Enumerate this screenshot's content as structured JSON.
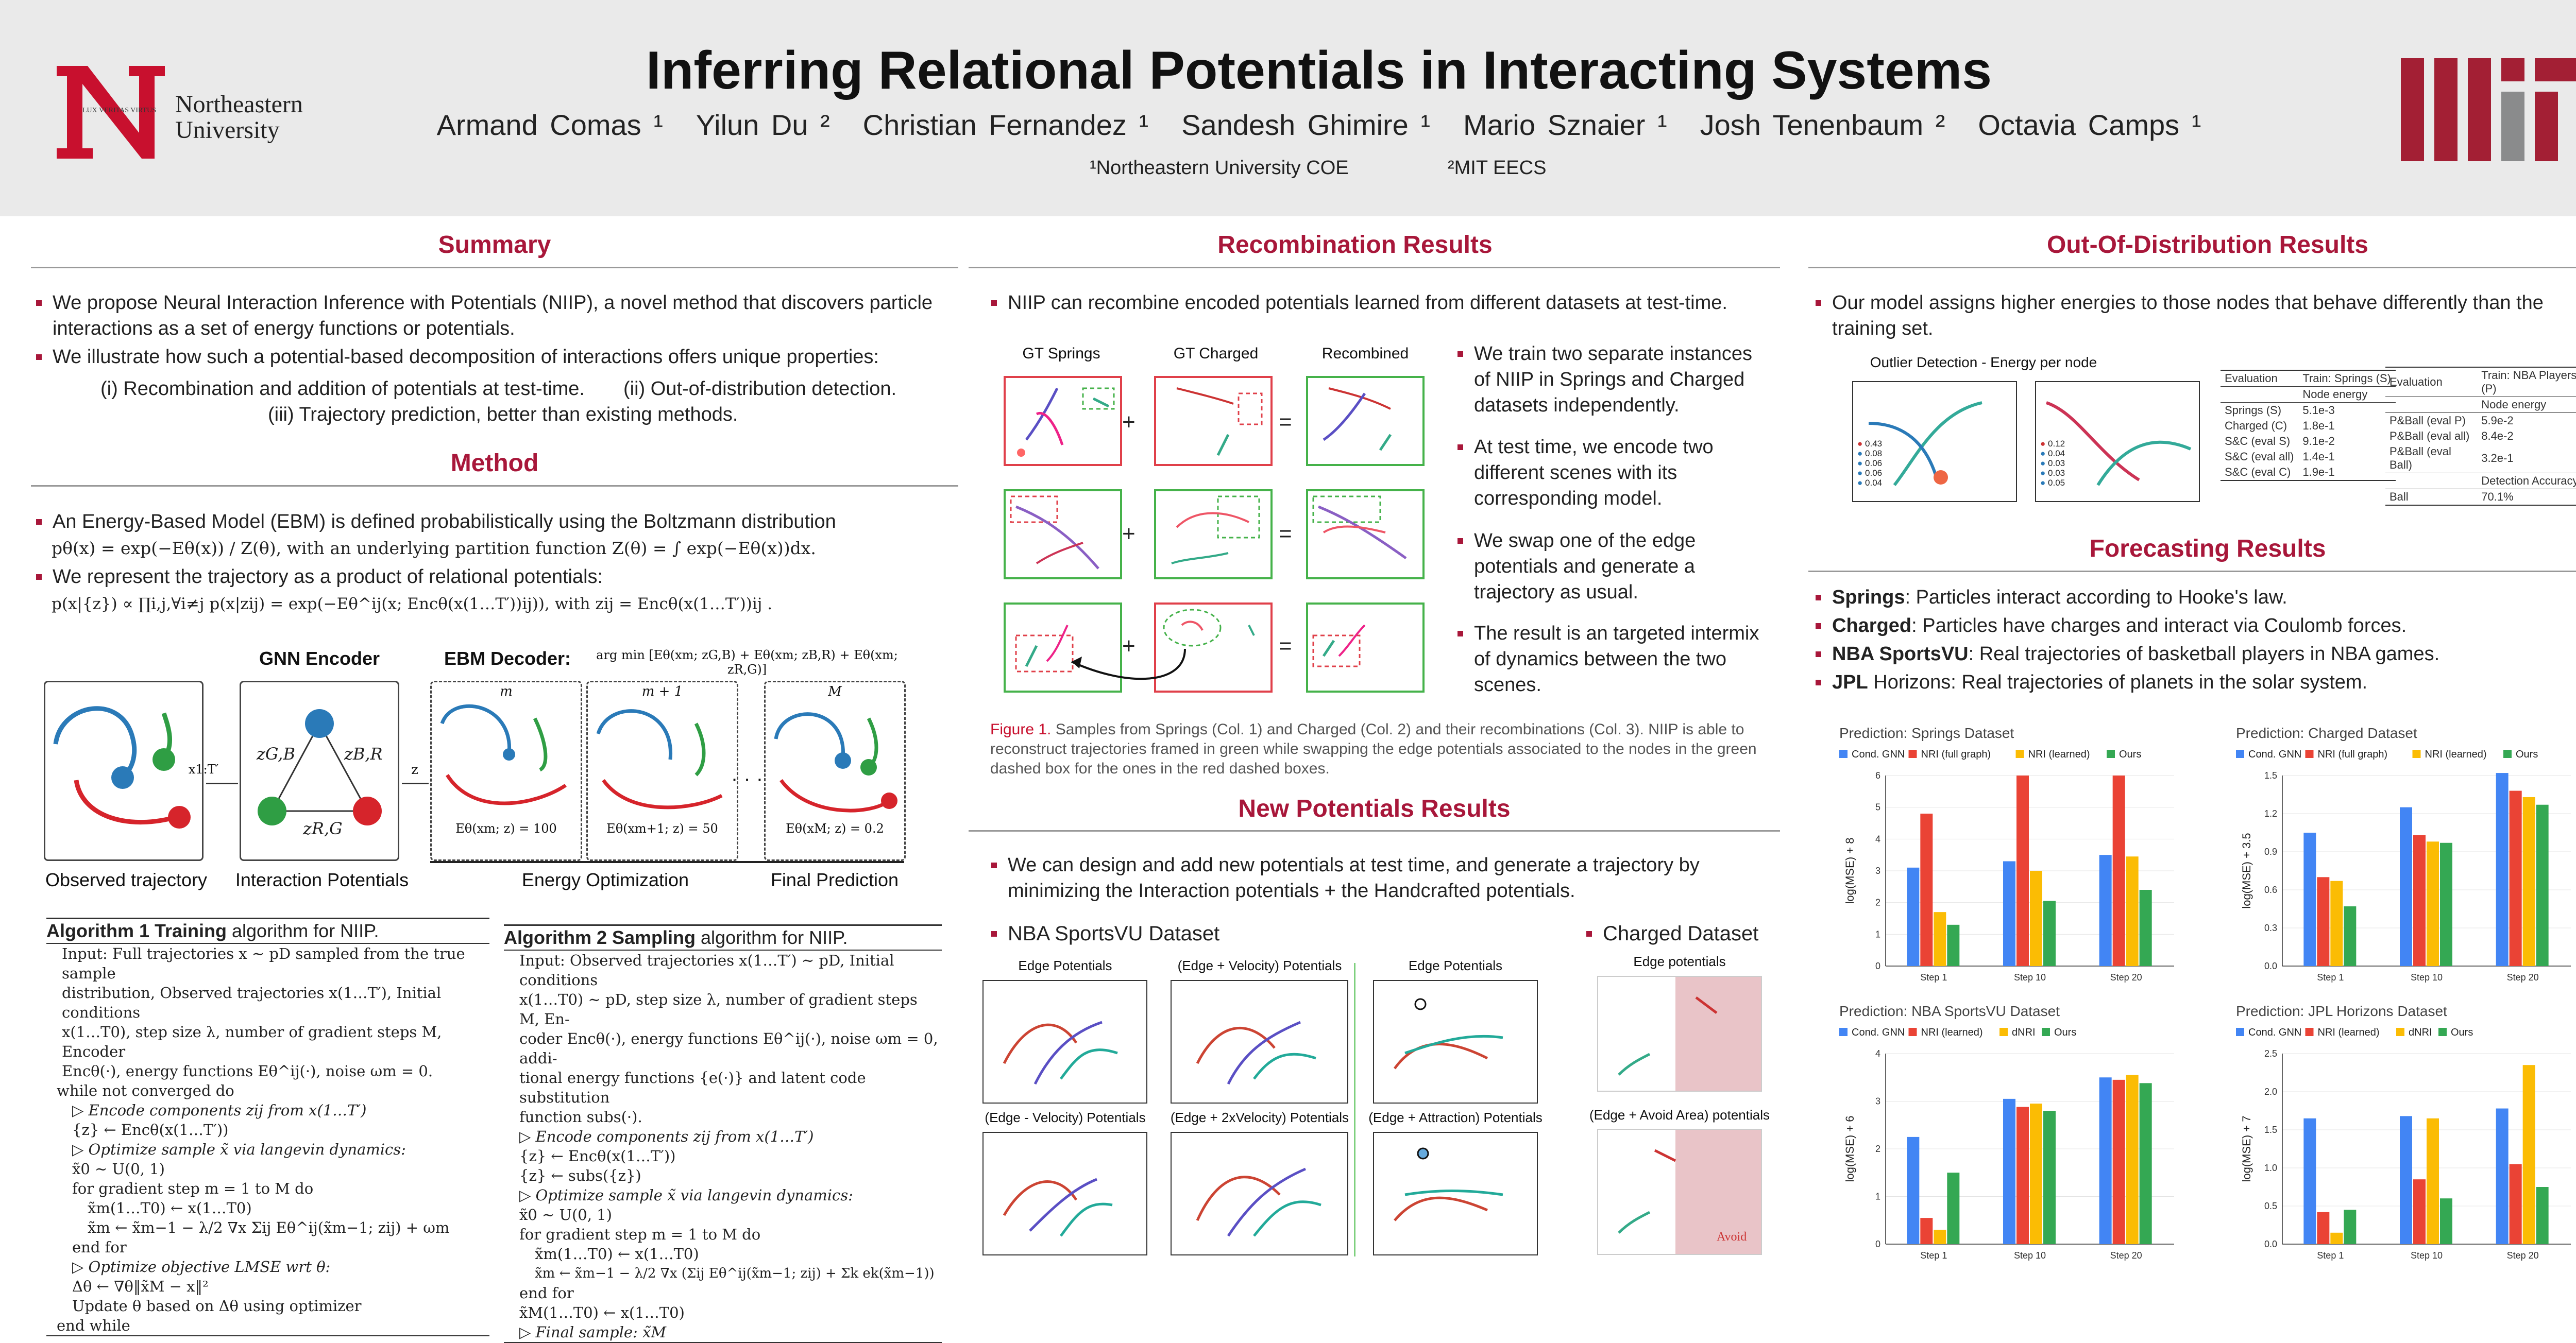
{
  "header": {
    "title": "Inferring Relational Potentials in Interacting Systems",
    "authors": [
      "Armand Comas ¹",
      "Yilun Du ²",
      "Christian Fernandez ¹",
      "Sandesh Ghimire ¹",
      "Mario Sznaier ¹",
      "Josh Tenenbaum ²",
      "Octavia Camps ¹"
    ],
    "affil1": "¹Northeastern University COE",
    "affil2": "²MIT EECS",
    "neu_name1": "Northeastern",
    "neu_name2": "University",
    "neu_motto": "LUX VERITAS VIRTUS"
  },
  "summary": {
    "title": "Summary",
    "b1": "We propose Neural Interaction Inference with Potentials (NIIP), a novel method that discovers particle interactions as a set of energy functions or potentials.",
    "b2": "We illustrate how such a potential-based decomposition of interactions offers unique properties:",
    "p1": "(i) Recombination and addition of potentials at test-time.",
    "p2": "(ii) Out-of-distribution detection.",
    "p3": "(iii) Trajectory prediction, better than existing methods."
  },
  "method": {
    "title": "Method",
    "b1": "An Energy-Based Model (EBM) is defined probabilistically using the Boltzmann distribution",
    "eq1": "pθ(x) = exp(−Eθ(x)) / Z(θ), with an underlying partition function Z(θ) = ∫ exp(−Eθ(x))dx.",
    "b2": "We represent the trajectory as a product of relational potentials:",
    "eq2": "p(x|{z}) ∝ ∏i,j,∀i≠j p(x|zij) = exp(−Eθ^ij(x; Encθ(x(1…T′))ij)), with zij = Encθ(x(1…T′))ij .",
    "gnn": "GNN Encoder",
    "ebm": "EBM Decoder:",
    "argmin": "arg min [Eθ(xm; zG,B) + Eθ(xm; zB,R) + Eθ(xm; zR,G)]",
    "obs": "Observed trajectory",
    "inter": "Interaction Potentials",
    "opt": "Energy Optimization",
    "final": "Final Prediction",
    "x1t": "x1:T′",
    "z": "z",
    "zgb": "zG,B",
    "zbr": "zB,R",
    "zrg": "zR,G",
    "m0": "m",
    "m1": "m + 1",
    "m2": "M",
    "e0": "Eθ(xm; z) = 100",
    "e1": "Eθ(xm+1; z) = 50",
    "e2": "Eθ(xM; z) = 0.2",
    "dots": "· · ·"
  },
  "algo1": {
    "title_b": "Algorithm 1 Training",
    "title_r": " algorithm for NIIP.",
    "lines": [
      "Input: Full trajectories x ∼ pD sampled from the true sample",
      "distribution, Observed trajectories x(1…T′), Initial conditions",
      "x(1…T0), step size λ, number of gradient steps M, Encoder",
      "Encθ(·), energy functions Eθ^ij(·), noise ωm = 0.",
      "while not converged do",
      "   ▷ Encode components zij from x(1…T′)",
      "   {z} ← Encθ(x(1…T′))",
      "   ▷ Optimize sample x̃ via langevin dynamics:",
      "   x̃0 ∼ U(0, 1)",
      "   for gradient step m = 1 to M do",
      "      x̃m(1…T0) ← x(1…T0)",
      "      x̃m ← x̃m−1 − λ/2 ∇x Σij Eθ^ij(x̃m−1; zij) + ωm",
      "   end for",
      "   ▷ Optimize objective LMSE wrt θ:",
      "   Δθ ← ∇θ‖x̃M − x‖²",
      "   Update θ based on Δθ using optimizer",
      "end while"
    ]
  },
  "algo2": {
    "title_b": "Algorithm 2 Sampling",
    "title_r": " algorithm for NIIP.",
    "lines": [
      "Input: Observed trajectories x(1…T′) ∼ pD, Initial conditions",
      "x(1…T0) ∼ pD, step size λ, number of gradient steps M, En-",
      "coder Encθ(·), energy functions Eθ^ij(·), noise ωm = 0, addi-",
      "tional energy functions {e(·)} and latent code substitution",
      "function subs(·).",
      "▷ Encode components zij from x(1…T′)",
      "{z} ← Encθ(x(1…T′))",
      "{z} ← subs({z})",
      "▷ Optimize sample x̃ via langevin dynamics:",
      "x̃0 ∼ U(0, 1)",
      "for gradient step m = 1 to M do",
      "   x̃m(1…T0) ← x(1…T0)",
      "   x̃m ← x̃m−1 − λ/2 ∇x (Σij Eθ^ij(x̃m−1; zij) + Σk ek(x̃m−1))",
      "end for",
      "x̃M(1…T0) ← x(1…T0)",
      "▷ Final sample: x̃M"
    ]
  },
  "recomb": {
    "title": "Recombination Results",
    "intro": "NIIP can recombine encoded potentials learned from different datasets at test-time.",
    "col1": "GT Springs",
    "col2": "GT Charged",
    "col3": "Recombined",
    "b1": "We train two separate instances of NIIP in Springs and Charged datasets independently.",
    "b2": "At test time, we encode two different scenes with its corresponding model.",
    "b3": "We swap one of the edge potentials and generate a trajectory as usual.",
    "b4": "The result is an targeted intermix of dynamics between the two scenes.",
    "fig_label": "Figure 1.",
    "fig_text": " Samples from Springs (Col. 1) and Charged (Col. 2) and their recombinations (Col. 3). NIIP is able to reconstruct trajectories framed in green while swapping the edge potentials associated to the nodes in the green dashed box for the ones in the red dashed boxes."
  },
  "newpot": {
    "title": "New Potentials Results",
    "b1": "We can design and add new potentials at test time, and generate a trajectory by minimizing the Interaction potentials + the Handcrafted potentials.",
    "nba": "NBA SportsVU Dataset",
    "charged": "Charged Dataset",
    "p1": "Edge Potentials",
    "p2": "(Edge + Velocity) Potentials",
    "p3": "Edge Potentials",
    "p4": "(Edge - Velocity) Potentials",
    "p5": "(Edge + 2xVelocity) Potentials",
    "p6": "(Edge + Attraction) Potentials",
    "c1": "Edge potentials",
    "c2": "(Edge + Avoid Area) potentials",
    "avoid": "Avoid"
  },
  "ood": {
    "title": "Out-Of-Distribution Results",
    "b1": "Our model assigns higher energies to those nodes that behave differently than the training set.",
    "plot_title": "Outlier Detection - Energy per node",
    "leg1": [
      "0.43",
      "0.08",
      "0.06",
      "0.06",
      "0.04"
    ],
    "leg2": [
      "0.12",
      "0.04",
      "0.03",
      "0.03",
      "0.05"
    ],
    "t1_h1": "Evaluation",
    "t1_h2": "Train: Springs (S)",
    "t1_sub": "Node energy",
    "t1_rows": [
      [
        "Springs (S)",
        "5.1e-3"
      ],
      [
        "Charged (C)",
        "1.8e-1"
      ],
      [
        "S&C (eval S)",
        "9.1e-2"
      ],
      [
        "S&C (eval all)",
        "1.4e-1"
      ],
      [
        "S&C (eval C)",
        "1.9e-1"
      ]
    ],
    "t2_h1": "Evaluation",
    "t2_h2": "Train: NBA Players (P)",
    "t2_sub": "Node energy",
    "t2_rows": [
      [
        "P&Ball (eval P)",
        "5.9e-2"
      ],
      [
        "P&Ball (eval all)",
        "8.4e-2"
      ],
      [
        "P&Ball (eval Ball)",
        "3.2e-1"
      ]
    ],
    "t2_sub2": "Detection Accuracy",
    "t2_row_b": [
      "Ball",
      "70.1%"
    ]
  },
  "forecast": {
    "title": "Forecasting Results",
    "items": [
      {
        "k": "Springs",
        "v": ": Particles interact according to Hooke's law."
      },
      {
        "k": "Charged",
        "v": ": Particles have charges and interact via Coulomb forces."
      },
      {
        "k": "NBA SportsVU",
        "v": ": Real trajectories of basketball players in NBA games."
      },
      {
        "k": "JPL",
        "v": " Horizons: Real trajectories of planets in the solar system."
      }
    ]
  },
  "colors": {
    "accent": "#a8173a",
    "blue": "#4285f4",
    "red": "#ea4335",
    "yellow": "#fbbc04",
    "green": "#34a853"
  },
  "chart_data": [
    {
      "type": "bar",
      "title": "Prediction: Springs Dataset",
      "ylabel": "log(MSE) + 8",
      "categories": [
        "Step 1",
        "Step 10",
        "Step 20"
      ],
      "ylim": [
        0,
        6
      ],
      "yticks": [
        "0",
        "1",
        "2",
        "3",
        "4",
        "5",
        "6"
      ],
      "series": [
        {
          "name": "Cond. GNN",
          "values": [
            3.1,
            3.3,
            3.5
          ]
        },
        {
          "name": "NRI (full graph)",
          "values": [
            4.8,
            6.0,
            6.0
          ]
        },
        {
          "name": "NRI (learned)",
          "values": [
            1.7,
            3.0,
            3.45
          ]
        },
        {
          "name": "Ours",
          "values": [
            1.3,
            2.05,
            2.4
          ]
        }
      ]
    },
    {
      "type": "bar",
      "title": "Prediction: Charged Dataset",
      "ylabel": "log(MSE) + 3.5",
      "categories": [
        "Step 1",
        "Step 10",
        "Step 20"
      ],
      "ylim": [
        0,
        1.5
      ],
      "yticks": [
        "0.0",
        "0.3",
        "0.6",
        "0.9",
        "1.2",
        "1.5"
      ],
      "series": [
        {
          "name": "Cond. GNN",
          "values": [
            1.05,
            1.25,
            1.52
          ]
        },
        {
          "name": "NRI (full graph)",
          "values": [
            0.7,
            1.03,
            1.38
          ]
        },
        {
          "name": "NRI (learned)",
          "values": [
            0.67,
            0.98,
            1.33
          ]
        },
        {
          "name": "Ours",
          "values": [
            0.47,
            0.97,
            1.27
          ]
        }
      ]
    },
    {
      "type": "bar",
      "title": "Prediction: NBA SportsVU Dataset",
      "ylabel": "log(MSE) + 6",
      "categories": [
        "Step 1",
        "Step 10",
        "Step 20"
      ],
      "ylim": [
        0,
        4
      ],
      "yticks": [
        "0",
        "1",
        "2",
        "3",
        "4"
      ],
      "series": [
        {
          "name": "Cond. GNN",
          "values": [
            2.25,
            3.05,
            3.5
          ]
        },
        {
          "name": "NRI (learned)",
          "values": [
            0.55,
            2.88,
            3.45
          ]
        },
        {
          "name": "dNRI",
          "values": [
            0.3,
            2.95,
            3.55
          ]
        },
        {
          "name": "Ours",
          "values": [
            1.5,
            2.8,
            3.38
          ]
        }
      ]
    },
    {
      "type": "bar",
      "title": "Prediction: JPL Horizons Dataset",
      "ylabel": "log(MSE) + 7",
      "categories": [
        "Step 1",
        "Step 10",
        "Step 20"
      ],
      "ylim": [
        0,
        2.5
      ],
      "yticks": [
        "0.0",
        "0.5",
        "1.0",
        "1.5",
        "2.0",
        "2.5"
      ],
      "series": [
        {
          "name": "Cond. GNN",
          "values": [
            1.65,
            1.68,
            1.78
          ]
        },
        {
          "name": "NRI (learned)",
          "values": [
            0.42,
            0.85,
            1.05
          ]
        },
        {
          "name": "dNRI",
          "values": [
            0.15,
            1.65,
            2.35
          ]
        },
        {
          "name": "Ours",
          "values": [
            0.45,
            0.6,
            0.75
          ]
        }
      ]
    }
  ]
}
